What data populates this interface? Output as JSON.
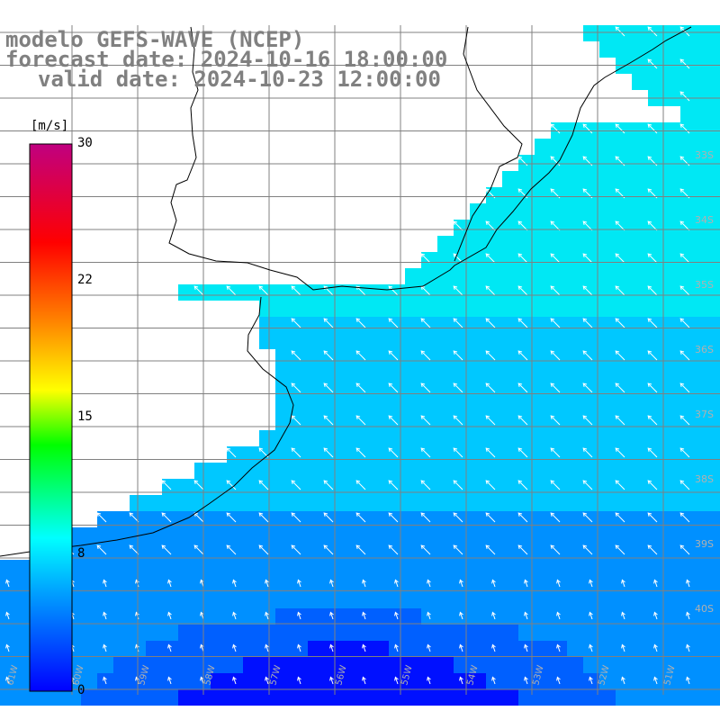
{
  "title": {
    "line1": "modelo GEFS-WAVE (NCEP)",
    "line2": "forecast date: 2024-10-16 18:00:00",
    "line3": "valid date: 2024-10-23 12:00:00"
  },
  "colorbar": {
    "unit": "[m/s]",
    "ticks": [
      "30",
      "22",
      "15",
      "8",
      "0"
    ],
    "range": [
      0,
      30
    ],
    "colors": [
      "#0000ff",
      "#00a0ff",
      "#00ffff",
      "#00ff00",
      "#ffff00",
      "#ff8000",
      "#ff0000",
      "#c00080"
    ]
  },
  "grid": {
    "lat_labels": [
      "33S",
      "34S",
      "35S",
      "36S",
      "37S",
      "38S",
      "39S",
      "40S"
    ],
    "lon_labels": [
      "61W",
      "60W",
      "59W",
      "58W",
      "57W",
      "56W",
      "55W",
      "54W",
      "53W",
      "52W",
      "51W"
    ]
  },
  "map": {
    "land_color": "#ffffff",
    "coast_color": "#000000",
    "grid_color": "#808080",
    "arrow_color": "#ffffff",
    "field_colors": [
      "#00e8f4",
      "#00c8ff",
      "#0090ff",
      "#0060ff",
      "#0010ff"
    ]
  }
}
